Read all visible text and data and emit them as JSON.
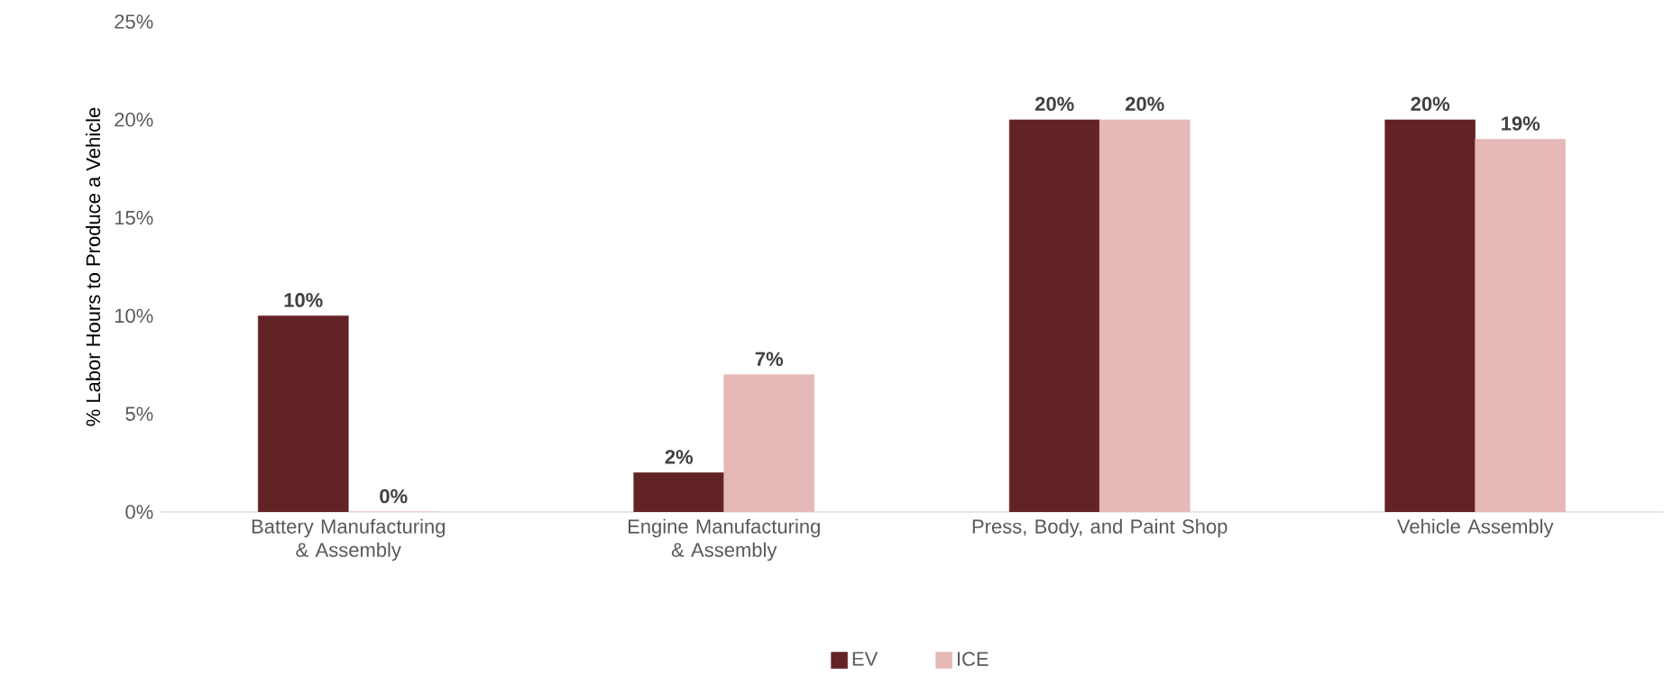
{
  "chart_data": {
    "type": "bar",
    "ylabel": "% Labor Hours to Produce a Vehicle",
    "categories": [
      "Battery Manufacturing & Assembly",
      "Engine Manufacturing & Assembly",
      "Press, Body, and Paint Shop",
      "Vehicle Assembly"
    ],
    "series": [
      {
        "name": "EV",
        "color": "#632225",
        "values": [
          10,
          2,
          20,
          20
        ],
        "value_labels": [
          "10%",
          "2%",
          "20%",
          "20%"
        ]
      },
      {
        "name": "ICE",
        "color": "#e6b8b7",
        "values": [
          0,
          7,
          20,
          19
        ],
        "value_labels": [
          "0%",
          "7%",
          "20%",
          "19%"
        ]
      }
    ],
    "ylim": [
      0,
      25
    ],
    "yticks": [
      {
        "value": 0,
        "label": "0%"
      },
      {
        "value": 5,
        "label": "5%"
      },
      {
        "value": 10,
        "label": "10%"
      },
      {
        "value": 15,
        "label": "15%"
      },
      {
        "value": 20,
        "label": "20%"
      },
      {
        "value": 25,
        "label": "25%"
      }
    ],
    "legend": "bottom"
  }
}
